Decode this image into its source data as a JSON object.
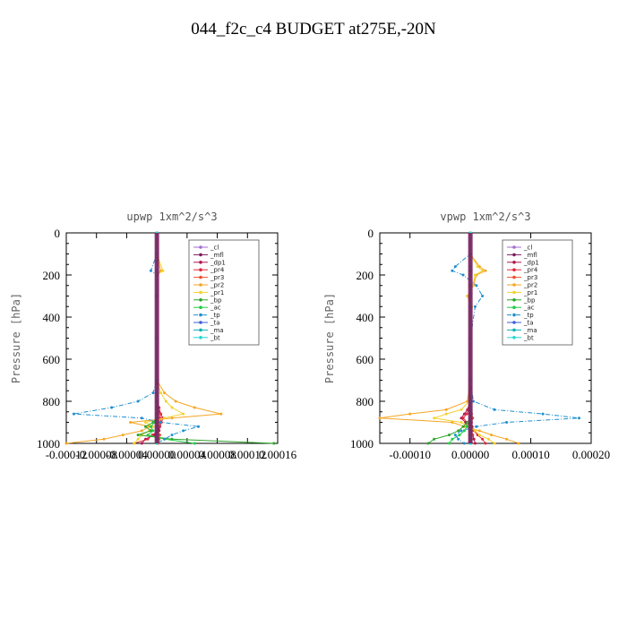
{
  "title": "044_f2c_c4  BUDGET at275E,-20N",
  "legend_entries": [
    {
      "name": "_cl",
      "color": "#9f6fcf",
      "dash": ""
    },
    {
      "name": "_mfl",
      "color": "#7d1a5a",
      "dash": ""
    },
    {
      "name": "_dp1",
      "color": "#b0174f",
      "dash": ""
    },
    {
      "name": "_pr4",
      "color": "#e0283c",
      "dash": ""
    },
    {
      "name": "_pr3",
      "color": "#f05030",
      "dash": ""
    },
    {
      "name": "_pr2",
      "color": "#f5a623",
      "dash": ""
    },
    {
      "name": "_pr1",
      "color": "#f2d22e",
      "dash": ""
    },
    {
      "name": "_bp",
      "color": "#2aa52a",
      "dash": ""
    },
    {
      "name": "_ac",
      "color": "#22cc44",
      "dash": ""
    },
    {
      "name": "_tp",
      "color": "#1f8fcf",
      "dash": "5,2,1,2"
    },
    {
      "name": "_ta",
      "color": "#3b5fd8",
      "dash": ""
    },
    {
      "name": "_ma",
      "color": "#10b0b8",
      "dash": ""
    },
    {
      "name": "_bt",
      "color": "#23d6d6",
      "dash": ""
    }
  ],
  "chart_data": [
    {
      "type": "line",
      "title": "upwp   1xm^2/s^3",
      "xlabel": "",
      "ylabel": "Pressure [hPa]",
      "xlim": [
        -0.00012,
        0.00016
      ],
      "ylim": [
        1000,
        0
      ],
      "xticks": [
        -0.00012,
        -8e-05,
        -4e-05,
        0.0,
        4e-05,
        8e-05,
        0.00012,
        0.00016
      ],
      "xtick_labels": [
        "-0.00012",
        "-0.00008",
        "-0.00004",
        "0.00000",
        "0.00004",
        "0.00008",
        "0.00012",
        "0.00016"
      ],
      "yticks": [
        0,
        200,
        400,
        600,
        800,
        1000
      ],
      "ytick_labels": [
        "0",
        "200",
        "400",
        "600",
        "800",
        "1000"
      ],
      "grid": false,
      "legend": "top-right",
      "y": [
        0,
        100,
        180,
        200,
        300,
        500,
        700,
        760,
        800,
        830,
        860,
        880,
        900,
        920,
        940,
        960,
        980,
        1000
      ],
      "series": [
        {
          "name": "_cl",
          "values": [
            0,
            0,
            0,
            0,
            0,
            0,
            0,
            0,
            0,
            0,
            0,
            0,
            0,
            0,
            0,
            0,
            0,
            0
          ]
        },
        {
          "name": "_mfl",
          "values": [
            0,
            0,
            0,
            0,
            0,
            0,
            0,
            0,
            0,
            0,
            0,
            0,
            0,
            0,
            0,
            0,
            0,
            0
          ]
        },
        {
          "name": "_dp1",
          "values": [
            0,
            0,
            0,
            0,
            0,
            0,
            0,
            0,
            0,
            0,
            5e-06,
            8e-06,
            6e-06,
            4e-06,
            3e-06,
            -4e-06,
            -1.5e-05,
            -2e-05
          ]
        },
        {
          "name": "_pr4",
          "values": [
            0,
            0,
            0,
            0,
            0,
            0,
            0,
            0,
            0,
            3e-06,
            5e-06,
            4e-06,
            6e-06,
            3e-06,
            2e-06,
            -6e-06,
            -1.2e-05,
            -3e-05
          ]
        },
        {
          "name": "_pr3",
          "values": [
            0,
            0,
            0,
            0,
            0,
            0,
            0,
            0,
            0,
            0,
            3e-06,
            2e-06,
            4e-06,
            2e-06,
            1e-06,
            4e-06,
            3e-06,
            2e-06
          ]
        },
        {
          "name": "_pr2",
          "values": [
            0,
            0,
            5e-06,
            0,
            0,
            0,
            0,
            1e-05,
            2.5e-05,
            5e-05,
            8.5e-05,
            2e-05,
            -3.5e-05,
            -1e-05,
            -2e-05,
            -4.5e-05,
            -7e-05,
            -0.00012
          ]
        },
        {
          "name": "_pr1",
          "values": [
            0,
            0,
            8e-06,
            0,
            0,
            0,
            0,
            5e-06,
            1.2e-05,
            2e-05,
            3.5e-05,
            1e-05,
            -1.5e-05,
            -5e-06,
            -1e-05,
            -2e-05,
            -2.5e-05,
            -3e-05
          ]
        },
        {
          "name": "_bp",
          "values": [
            0,
            0,
            0,
            0,
            0,
            0,
            0,
            0,
            0,
            0,
            0,
            0,
            -5e-06,
            -1.5e-05,
            -8e-06,
            -2.5e-05,
            2e-05,
            0.000155
          ]
        },
        {
          "name": "_ac",
          "values": [
            0,
            0,
            0,
            0,
            0,
            0,
            0,
            0,
            0,
            0,
            0,
            0,
            -3e-06,
            -8e-06,
            -5e-06,
            -1.2e-05,
            1e-05,
            5e-05
          ]
        },
        {
          "name": "_tp",
          "values": [
            0,
            0,
            -8e-06,
            0,
            0,
            0,
            0,
            -5e-06,
            -2.5e-05,
            -6e-05,
            -0.00011,
            -2e-05,
            5e-06,
            5.5e-05,
            3.5e-05,
            2e-05,
            1e-05,
            0.0
          ]
        },
        {
          "name": "_ta",
          "values": [
            0,
            0,
            0,
            0,
            0,
            0,
            0,
            0,
            0,
            0,
            0,
            0,
            0,
            0,
            0,
            0,
            0,
            0
          ]
        },
        {
          "name": "_ma",
          "values": [
            0,
            0,
            0,
            0,
            0,
            0,
            0,
            0,
            0,
            0,
            0,
            0,
            0,
            0,
            0,
            0,
            0,
            0
          ]
        },
        {
          "name": "_bt",
          "values": [
            0,
            0,
            0,
            0,
            0,
            0,
            0,
            0,
            0,
            0,
            0,
            0,
            0,
            0,
            0,
            0,
            0,
            0
          ]
        }
      ]
    },
    {
      "type": "line",
      "title": "vpwp   1xm^2/s^3",
      "xlabel": "",
      "ylabel": "Pressure [hPa]",
      "xlim": [
        -0.00015,
        0.0002
      ],
      "ylim": [
        1000,
        0
      ],
      "xticks": [
        -0.0001,
        0.0,
        0.0001,
        0.0002
      ],
      "xtick_labels": [
        "-0.00010",
        "0.00000",
        "0.00010",
        "0.00020"
      ],
      "yticks": [
        0,
        200,
        400,
        600,
        800,
        1000
      ],
      "ytick_labels": [
        "0",
        "200",
        "400",
        "600",
        "800",
        "1000"
      ],
      "grid": false,
      "legend": "top-right",
      "y": [
        0,
        100,
        160,
        180,
        200,
        250,
        300,
        350,
        500,
        700,
        800,
        840,
        860,
        880,
        900,
        920,
        940,
        960,
        980,
        1000
      ],
      "series": [
        {
          "name": "_cl",
          "values": [
            0,
            0,
            0,
            0,
            0,
            0,
            0,
            0,
            0,
            0,
            0,
            0,
            0,
            0,
            0,
            0,
            0,
            0,
            0,
            0
          ]
        },
        {
          "name": "_mfl",
          "values": [
            0,
            0,
            0,
            0,
            0,
            0,
            0,
            0,
            0,
            0,
            0,
            0,
            0,
            0,
            0,
            0,
            0,
            0,
            0,
            0
          ]
        },
        {
          "name": "_dp1",
          "values": [
            0,
            0,
            0,
            0,
            0,
            0,
            0,
            0,
            0,
            0,
            0,
            -5e-06,
            -1e-05,
            -1.5e-05,
            -8e-06,
            -4e-06,
            2e-06,
            4e-06,
            6e-06,
            8e-06
          ]
        },
        {
          "name": "_pr4",
          "values": [
            0,
            0,
            0,
            0,
            0,
            0,
            0,
            0,
            0,
            0,
            0,
            -3e-06,
            -6e-06,
            -1.2e-05,
            -5e-06,
            3e-06,
            6e-06,
            1.2e-05,
            2e-05,
            2.5e-05
          ]
        },
        {
          "name": "_pr3",
          "values": [
            0,
            0,
            0,
            0,
            0,
            0,
            0,
            0,
            0,
            0,
            0,
            0,
            2e-06,
            4e-06,
            2e-06,
            1e-06,
            2e-06,
            3e-06,
            2e-06,
            1e-06
          ]
        },
        {
          "name": "_pr2",
          "values": [
            0,
            0,
            1.5e-05,
            2.5e-05,
            1e-05,
            5e-06,
            -5e-06,
            2e-06,
            0,
            0,
            -5e-06,
            -4e-05,
            -0.0001,
            -0.00015,
            -3e-05,
            -1e-05,
            1.5e-05,
            3.5e-05,
            6e-05,
            8e-05
          ]
        },
        {
          "name": "_pr1",
          "values": [
            0,
            0,
            1.2e-05,
            2e-05,
            8e-06,
            4e-06,
            -4e-06,
            2e-06,
            0,
            0,
            -2e-06,
            -1.5e-05,
            -4e-05,
            -6e-05,
            -1.5e-05,
            -4e-06,
            8e-06,
            1.5e-05,
            3e-05,
            4e-05
          ]
        },
        {
          "name": "_bp",
          "values": [
            0,
            0,
            0,
            0,
            0,
            0,
            0,
            0,
            0,
            0,
            0,
            0,
            0,
            0,
            -5e-06,
            -1.2e-05,
            -2e-05,
            -3.5e-05,
            -6e-05,
            -7e-05
          ]
        },
        {
          "name": "_ac",
          "values": [
            0,
            0,
            0,
            0,
            0,
            0,
            0,
            0,
            0,
            0,
            0,
            0,
            0,
            0,
            -3e-06,
            -6e-06,
            -1e-05,
            -1.8e-05,
            -3e-05,
            -3.5e-05
          ]
        },
        {
          "name": "_tp",
          "values": [
            0,
            0,
            -2.5e-05,
            -3e-05,
            -1.2e-05,
            1e-05,
            2e-05,
            8e-06,
            0,
            0,
            5e-06,
            4e-05,
            0.00012,
            0.00018,
            6e-05,
            1e-05,
            -1.5e-05,
            -2.5e-05,
            -2e-05,
            -1e-05
          ]
        },
        {
          "name": "_ta",
          "values": [
            0,
            0,
            0,
            0,
            0,
            0,
            0,
            0,
            0,
            0,
            0,
            0,
            0,
            0,
            0,
            0,
            0,
            0,
            0,
            0
          ]
        },
        {
          "name": "_ma",
          "values": [
            0,
            0,
            0,
            0,
            0,
            0,
            0,
            0,
            0,
            0,
            0,
            0,
            0,
            0,
            0,
            0,
            0,
            0,
            0,
            0
          ]
        },
        {
          "name": "_bt",
          "values": [
            0,
            0,
            0,
            0,
            0,
            0,
            0,
            0,
            0,
            0,
            0,
            0,
            0,
            0,
            0,
            0,
            0,
            0,
            0,
            0
          ]
        }
      ]
    }
  ]
}
